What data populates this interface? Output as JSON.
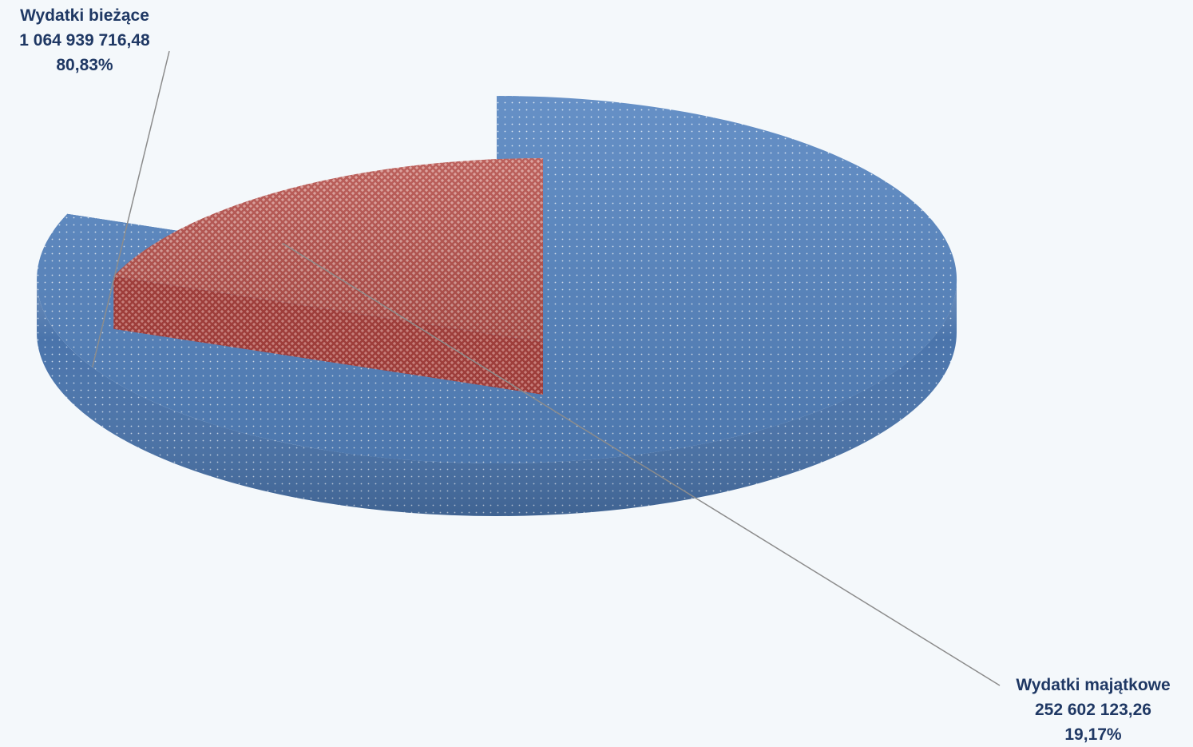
{
  "colors": {
    "background": "#f4f8fb",
    "label_text": "#1f3864",
    "slice_biezace_top": "#5584c0",
    "slice_biezace_side": "#4a74ab",
    "slice_biezace_inner": "#1e3350",
    "slice_majatkowe_top": "#b5504b",
    "slice_majatkowe_side": "#9e3e3b",
    "leader_line": "#8c8c8c"
  },
  "chart_data": {
    "type": "pie",
    "style": "3d-exploded",
    "slices": [
      {
        "name": "Wydatki bieżące",
        "value": 1064939716.48,
        "value_label": "1 064 939 716,48",
        "percent": 80.83,
        "percent_label": "80,83%",
        "color": "#5584c0",
        "pattern": "dots"
      },
      {
        "name": "Wydatki majątkowe",
        "value": 252602123.26,
        "value_label": "252 602 123,26",
        "percent": 19.17,
        "percent_label": "19,17%",
        "color": "#b5504b",
        "pattern": "weave",
        "exploded": true
      }
    ]
  }
}
